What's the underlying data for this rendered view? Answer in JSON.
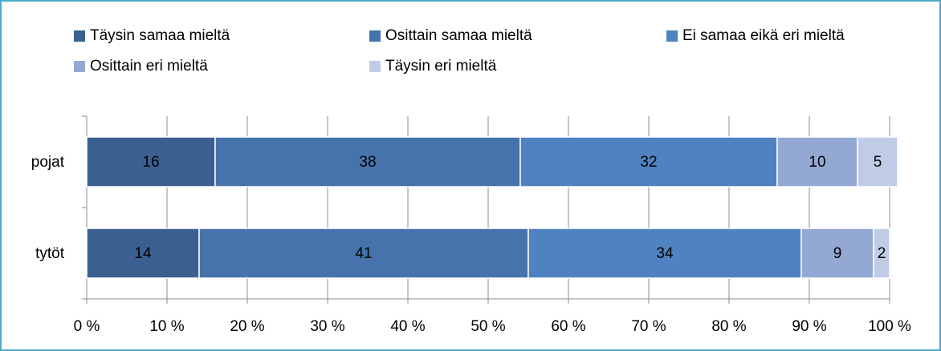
{
  "chart_data": {
    "type": "stacked-bar-horizontal",
    "categories": [
      "pojat",
      "tytöt"
    ],
    "series": [
      {
        "name": "Täysin samaa mieltä",
        "color": "#3b5f91",
        "values": [
          16,
          14
        ]
      },
      {
        "name": "Osittain samaa mieltä",
        "color": "#4673ab",
        "values": [
          38,
          41
        ]
      },
      {
        "name": "Ei samaa eikä eri mieltä",
        "color": "#4f82c0",
        "values": [
          32,
          34
        ]
      },
      {
        "name": "Osittain eri mieltä",
        "color": "#93a8d3",
        "values": [
          10,
          9
        ]
      },
      {
        "name": "Täysin eri mieltä",
        "color": "#c0cbe6",
        "values": [
          5,
          2
        ]
      }
    ],
    "xlim": [
      0,
      100
    ],
    "xticks": [
      {
        "value": 0,
        "label": "0 %"
      },
      {
        "value": 10,
        "label": "10 %"
      },
      {
        "value": 20,
        "label": "20 %"
      },
      {
        "value": 30,
        "label": "30 %"
      },
      {
        "value": 40,
        "label": "40 %"
      },
      {
        "value": 50,
        "label": "50 %"
      },
      {
        "value": 60,
        "label": "60 %"
      },
      {
        "value": 70,
        "label": "70 %"
      },
      {
        "value": 80,
        "label": "80 %"
      },
      {
        "value": 90,
        "label": "90 %"
      },
      {
        "value": 100,
        "label": "100 %"
      }
    ],
    "grid": true
  }
}
